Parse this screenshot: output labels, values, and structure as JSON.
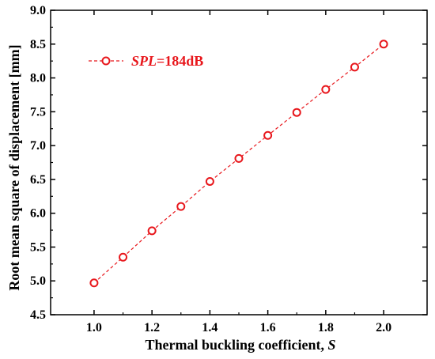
{
  "chart_data": {
    "type": "line",
    "title": "",
    "xlabel": "Thermal buckling coefficient, ",
    "xlabel_italic": "S",
    "ylabel": "Root mean square of displacement [mm]",
    "xlim": [
      0.85,
      2.15
    ],
    "ylim": [
      4.5,
      9.0
    ],
    "xticks": [
      1.0,
      1.2,
      1.4,
      1.6,
      1.8,
      2.0
    ],
    "xtick_labels": [
      "1.0",
      "1.2",
      "1.4",
      "1.6",
      "1.8",
      "2.0"
    ],
    "yticks": [
      4.5,
      5.0,
      5.5,
      6.0,
      6.5,
      7.0,
      7.5,
      8.0,
      8.5,
      9.0
    ],
    "ytick_labels": [
      "4.5",
      "5.0",
      "5.5",
      "6.0",
      "6.5",
      "7.0",
      "7.5",
      "8.0",
      "8.5",
      "9.0"
    ],
    "grid": false,
    "legend_position": "top-left",
    "series": [
      {
        "name_italic": "SPL",
        "name_rest": "=184dB",
        "color": "#e8171c",
        "line_style": "dashed",
        "marker": "open-circle",
        "x": [
          1.0,
          1.1,
          1.2,
          1.3,
          1.4,
          1.5,
          1.6,
          1.7,
          1.8,
          1.9,
          2.0
        ],
        "y": [
          4.97,
          5.35,
          5.74,
          6.1,
          6.47,
          6.81,
          7.15,
          7.49,
          7.83,
          8.16,
          8.5
        ]
      }
    ]
  }
}
